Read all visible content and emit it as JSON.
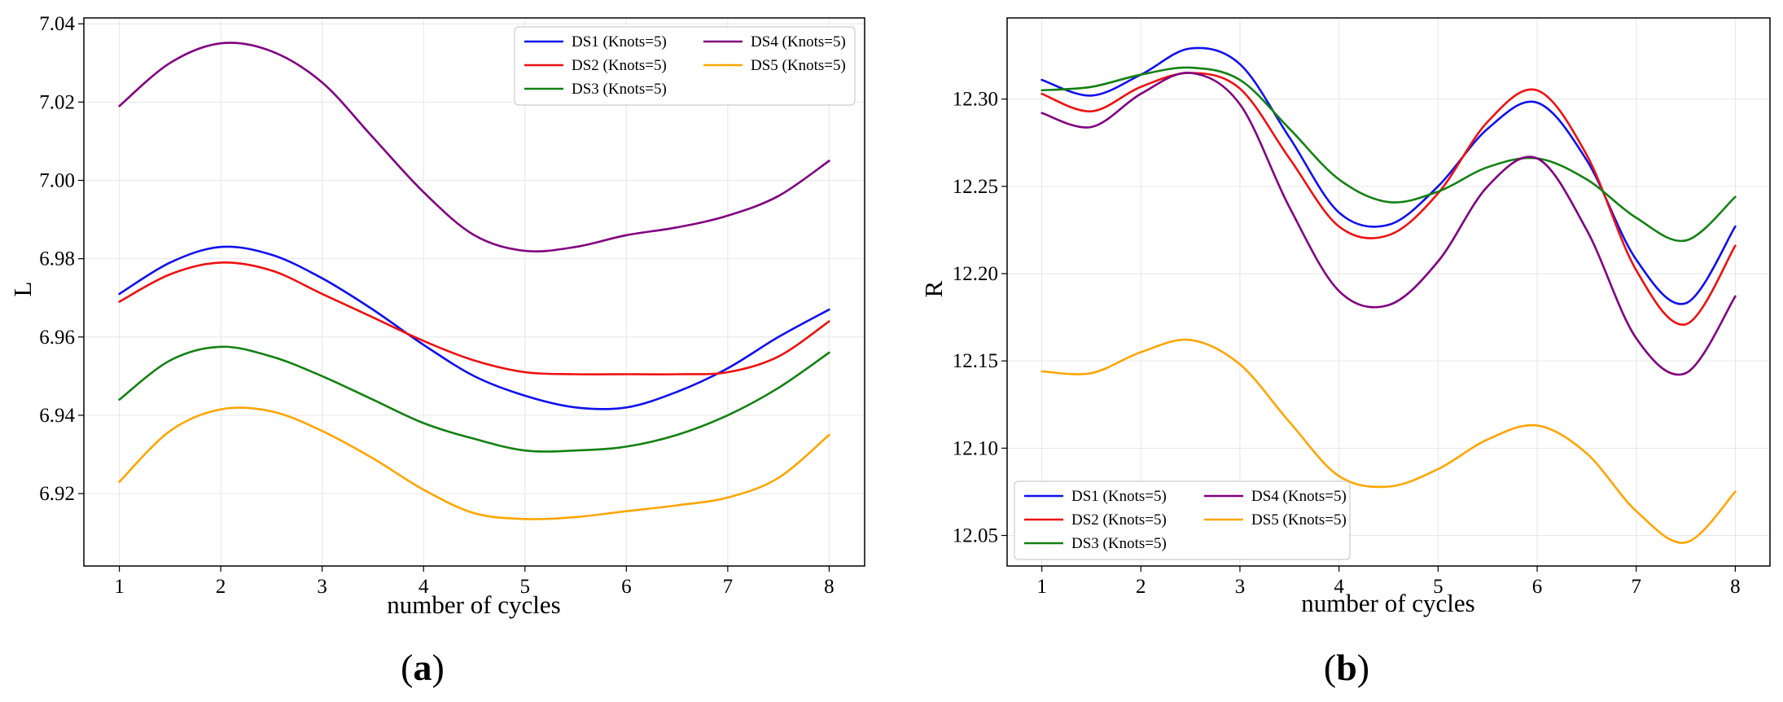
{
  "figure": {
    "panels": [
      {
        "open": "(",
        "letter": "a",
        "close": ")"
      },
      {
        "open": "(",
        "letter": "b",
        "close": ")"
      }
    ]
  },
  "chart_data": [
    {
      "type": "line",
      "xlabel": "number of cycles",
      "ylabel": "L",
      "xlim": [
        0.65,
        8.35
      ],
      "ylim": [
        6.9015,
        7.0415
      ],
      "xticks": [
        1,
        2,
        3,
        4,
        5,
        6,
        7,
        8
      ],
      "yticks": [
        6.92,
        6.94,
        6.96,
        6.98,
        7.0,
        7.02,
        7.04
      ],
      "ytick_labels": [
        "6.92",
        "6.94",
        "6.96",
        "6.98",
        "7.00",
        "7.02",
        "7.04"
      ],
      "grid": true,
      "legend": {
        "position": "top-right",
        "columns": 2
      },
      "series": [
        {
          "name": "DS1 (Knots=5)",
          "color": "#1010ee",
          "x": [
            1,
            1.5,
            2,
            2.5,
            3,
            3.5,
            4,
            4.5,
            5,
            5.5,
            6,
            6.5,
            7,
            7.5,
            8
          ],
          "y": [
            6.971,
            6.979,
            6.983,
            6.981,
            6.975,
            6.967,
            6.958,
            6.95,
            6.945,
            6.942,
            6.942,
            6.946,
            6.952,
            6.96,
            6.967
          ]
        },
        {
          "name": "DS2 (Knots=5)",
          "color": "#ee1111",
          "x": [
            1,
            1.5,
            2,
            2.5,
            3,
            3.5,
            4,
            4.5,
            5,
            5.5,
            6,
            6.5,
            7,
            7.5,
            8
          ],
          "y": [
            6.969,
            6.976,
            6.979,
            6.977,
            6.971,
            6.965,
            6.959,
            6.954,
            6.951,
            6.9505,
            6.9505,
            6.9505,
            6.951,
            6.955,
            6.964
          ]
        },
        {
          "name": "DS3 (Knots=5)",
          "color": "#138113",
          "x": [
            1,
            1.5,
            2,
            2.5,
            3,
            3.5,
            4,
            4.5,
            5,
            5.5,
            6,
            6.5,
            7,
            7.5,
            8
          ],
          "y": [
            6.944,
            6.954,
            6.9575,
            6.955,
            6.95,
            6.944,
            6.938,
            6.934,
            6.931,
            6.931,
            6.932,
            6.935,
            6.94,
            6.947,
            6.956
          ]
        },
        {
          "name": "DS4 (Knots=5)",
          "color": "#800080",
          "x": [
            1,
            1.5,
            2,
            2.5,
            3,
            3.5,
            4,
            4.5,
            5,
            5.5,
            6,
            6.5,
            7,
            7.5,
            8
          ],
          "y": [
            7.019,
            7.03,
            7.035,
            7.033,
            7.025,
            7.011,
            6.997,
            6.986,
            6.982,
            6.983,
            6.986,
            6.988,
            6.991,
            6.996,
            7.005
          ]
        },
        {
          "name": "DS5 (Knots=5)",
          "color": "#ffa500",
          "x": [
            1,
            1.5,
            2,
            2.5,
            3,
            3.5,
            4,
            4.5,
            5,
            5.5,
            6,
            6.5,
            7,
            7.5,
            8
          ],
          "y": [
            6.923,
            6.936,
            6.9415,
            6.941,
            6.936,
            6.929,
            6.921,
            6.915,
            6.9135,
            6.914,
            6.9155,
            6.917,
            6.919,
            6.924,
            6.935
          ]
        }
      ]
    },
    {
      "type": "line",
      "xlabel": "number of cycles",
      "ylabel": "R",
      "xlim": [
        0.65,
        8.35
      ],
      "ylim": [
        12.0325,
        12.3465
      ],
      "xticks": [
        1,
        2,
        3,
        4,
        5,
        6,
        7,
        8
      ],
      "yticks": [
        12.05,
        12.1,
        12.15,
        12.2,
        12.25,
        12.3
      ],
      "ytick_labels": [
        "12.05",
        "12.10",
        "12.15",
        "12.20",
        "12.25",
        "12.30"
      ],
      "grid": true,
      "legend": {
        "position": "bottom-left",
        "columns": 2
      },
      "series": [
        {
          "name": "DS1 (Knots=5)",
          "color": "#1010ee",
          "x": [
            1,
            1.5,
            2,
            2.5,
            3,
            3.5,
            4,
            4.5,
            5,
            5.5,
            6,
            6.5,
            7,
            7.5,
            8
          ],
          "y": [
            12.311,
            12.302,
            12.314,
            12.329,
            12.32,
            12.278,
            12.235,
            12.228,
            12.25,
            12.283,
            12.298,
            12.265,
            12.208,
            12.183,
            12.227
          ]
        },
        {
          "name": "DS2 (Knots=5)",
          "color": "#ee1111",
          "x": [
            1,
            1.5,
            2,
            2.5,
            3,
            3.5,
            4,
            4.5,
            5,
            5.5,
            6,
            6.5,
            7,
            7.5,
            8
          ],
          "y": [
            12.303,
            12.293,
            12.307,
            12.315,
            12.306,
            12.266,
            12.227,
            12.222,
            12.246,
            12.287,
            12.305,
            12.268,
            12.202,
            12.171,
            12.216
          ]
        },
        {
          "name": "DS3 (Knots=5)",
          "color": "#138113",
          "x": [
            1,
            1.5,
            2,
            2.5,
            3,
            3.5,
            4,
            4.5,
            5,
            5.5,
            6,
            6.5,
            7,
            7.5,
            8
          ],
          "y": [
            12.305,
            12.307,
            12.314,
            12.318,
            12.311,
            12.283,
            12.254,
            12.241,
            12.247,
            12.261,
            12.266,
            12.254,
            12.232,
            12.219,
            12.244
          ]
        },
        {
          "name": "DS4 (Knots=5)",
          "color": "#800080",
          "x": [
            1,
            1.5,
            2,
            2.5,
            3,
            3.5,
            4,
            4.5,
            5,
            5.5,
            6,
            6.5,
            7,
            7.5,
            8
          ],
          "y": [
            12.292,
            12.284,
            12.303,
            12.315,
            12.297,
            12.238,
            12.19,
            12.182,
            12.207,
            12.25,
            12.266,
            12.225,
            12.163,
            12.143,
            12.187
          ]
        },
        {
          "name": "DS5 (Knots=5)",
          "color": "#ffa500",
          "x": [
            1,
            1.5,
            2,
            2.5,
            3,
            3.5,
            4,
            4.5,
            5,
            5.5,
            6,
            6.5,
            7,
            7.5,
            8
          ],
          "y": [
            12.144,
            12.143,
            12.155,
            12.162,
            12.148,
            12.115,
            12.084,
            12.078,
            12.088,
            12.105,
            12.113,
            12.097,
            12.064,
            12.046,
            12.075
          ]
        }
      ]
    }
  ]
}
